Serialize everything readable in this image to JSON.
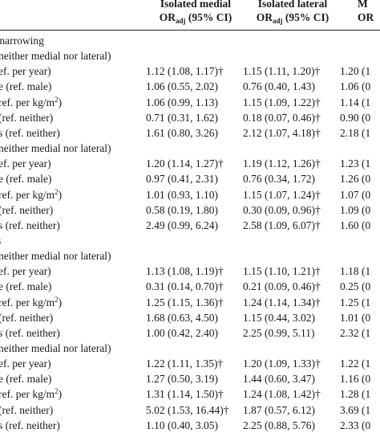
{
  "header": {
    "col1_line1": "Isolated medial",
    "col1_line2": "OR",
    "col1_sub": "adj",
    "col1_ci": " (95% CI)",
    "col2_line1": "Isolated lateral",
    "col2_line2": "OR",
    "col2_sub": "adj",
    "col2_ci": " (95% CI)",
    "col3_line1": "M",
    "col3_line2": "OR"
  },
  "rows": [
    {
      "kind": "section",
      "label": "e narrowing",
      "c1": "",
      "c2": "",
      "c3": ""
    },
    {
      "kind": "subsection",
      "label": "neither medial nor lateral)",
      "c1": "",
      "c2": "",
      "c3": ""
    },
    {
      "kind": "data",
      "label": "ef. per year)",
      "c1": "1.12 (1.08, 1.17)†",
      "c2": "1.15 (1.11, 1.20)†",
      "c3": "1.20 (1"
    },
    {
      "kind": "data",
      "label": "e (ref. male)",
      "c1": "1.06 (0.55, 2.02)",
      "c2": "0.76 (0.40, 1.43)",
      "c3": "1.06 (0"
    },
    {
      "kind": "data",
      "label": "ref. per kg/m",
      "sup": "2",
      "tail": ")",
      "c1": "1.06 (0.99, 1.13)",
      "c2": "1.15 (1.09, 1.22)†",
      "c3": "1.14 (1"
    },
    {
      "kind": "data",
      "label": "(ref. neither)",
      "c1": "0.71 (0.31, 1.62)",
      "c2": "0.18 (0.07, 0.46)†",
      "c3": "0.90 (0"
    },
    {
      "kind": "data",
      "label": "s (ref. neither)",
      "c1": "1.61 (0.80, 3.26)",
      "c2": "2.12 (1.07, 4.18)†",
      "c3": "2.18 (1"
    },
    {
      "kind": "subsection",
      "label": "neither medial nor lateral)",
      "c1": "",
      "c2": "",
      "c3": ""
    },
    {
      "kind": "data",
      "label": "ef. per year)",
      "c1": "1.20 (1.14, 1.27)†",
      "c2": "1.19 (1.12, 1.26)†",
      "c3": "1.23 (1"
    },
    {
      "kind": "data",
      "label": "e (ref. male)",
      "c1": "0.97 (0.41, 2.31)",
      "c2": "0.76 (0.34, 1.72)",
      "c3": "1.26 (0"
    },
    {
      "kind": "data",
      "label": "ref. per kg/m",
      "sup": "2",
      "tail": ")",
      "c1": "1.01 (0.93, 1.10)",
      "c2": "1.15 (1.07, 1.24)†",
      "c3": "1.07 (0"
    },
    {
      "kind": "data",
      "label": "(ref. neither)",
      "c1": "0.58 (0.19, 1.80)",
      "c2": "0.30 (0.09, 0.96)†",
      "c3": "1.09 (0"
    },
    {
      "kind": "data",
      "label": "s (ref. neither)",
      "c1": "2.49 (0.99, 6.24)",
      "c2": "2.58 (1.09, 6.07)†",
      "c3": "1.60 (0"
    },
    {
      "kind": "section",
      "label": "es",
      "c1": "",
      "c2": "",
      "c3": ""
    },
    {
      "kind": "subsection",
      "label": "neither medial nor lateral)",
      "c1": "",
      "c2": "",
      "c3": ""
    },
    {
      "kind": "data",
      "label": "ef. per year)",
      "c1": "1.13 (1.08, 1.19)†",
      "c2": "1.15 (1.10, 1.21)†",
      "c3": "1.18 (1"
    },
    {
      "kind": "data",
      "label": "e (ref. male)",
      "c1": "0.31 (0.14, 0.70)†",
      "c2": "0.21 (0.09, 0.46)†",
      "c3": "0.25 (0"
    },
    {
      "kind": "data",
      "label": "ref. per kg/m",
      "sup": "2",
      "tail": ")",
      "c1": "1.25 (1.15, 1.36)†",
      "c2": "1.24 (1.14, 1.34)†",
      "c3": "1.25 (1"
    },
    {
      "kind": "data",
      "label": " (ref. neither)",
      "c1": "1.68 (0.63, 4.50)",
      "c2": "1.15 (0.44, 3.02)",
      "c3": "1.01 (0"
    },
    {
      "kind": "data",
      "label": "s (ref. neither)",
      "c1": "1.00 (0.42, 2.40)",
      "c2": "2.25 (0.99, 5.11)",
      "c3": "2.32 (1"
    },
    {
      "kind": "subsection",
      "label": "neither medial nor lateral)",
      "c1": "",
      "c2": "",
      "c3": ""
    },
    {
      "kind": "data",
      "label": "ef. per year)",
      "c1": "1.22 (1.11, 1.35)†",
      "c2": "1.20 (1.09, 1.33)†",
      "c3": "1.22 (1"
    },
    {
      "kind": "data",
      "label": "e (ref. male)",
      "c1": "1.27 (0.50, 3.19)",
      "c2": "1.44 (0.60, 3.47)",
      "c3": "1.16 (0"
    },
    {
      "kind": "data",
      "label": "ref. per kg/m",
      "sup": "2",
      "tail": ")",
      "c1": "1.31 (1.14, 1.50)†",
      "c2": "1.24 (1.08, 1.42)†",
      "c3": "1.28 (1"
    },
    {
      "kind": "data",
      "label": " (ref. neither)",
      "c1": "5.02 (1.53, 16.44)†",
      "c2": "1.87 (0.57, 6.12)",
      "c3": "3.69 (1"
    },
    {
      "kind": "data",
      "label": "s (ref. neither)",
      "c1": "1.10 (0.40, 3.05)",
      "c2": "2.25 (0.88, 5.76)",
      "c3": "2.33 (0"
    }
  ]
}
